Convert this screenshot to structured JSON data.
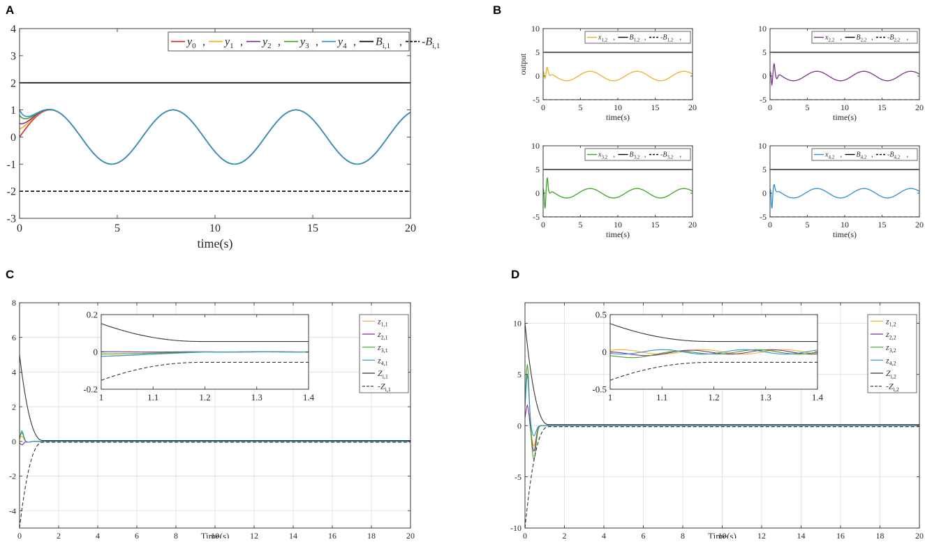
{
  "chart_data": [
    {
      "panel": "A",
      "type": "line",
      "xlabel": "time(s)",
      "ylabel": "",
      "xlim": [
        0,
        20
      ],
      "ylim": [
        -3,
        4
      ],
      "xticks": [
        "0",
        "5",
        "10",
        "15",
        "20"
      ],
      "yticks": [
        "-3",
        "-2",
        "-1",
        "0",
        "1",
        "2",
        "3",
        "4"
      ],
      "series": [
        {
          "name": "y0",
          "label_main": "y",
          "label_sub": "0",
          "color": "#d62728",
          "style": "solid",
          "func": "sin",
          "y0": 0,
          "decay": 2.5
        },
        {
          "name": "y1",
          "label_main": "y",
          "label_sub": "1",
          "color": "#edb120",
          "style": "solid",
          "func": "sin",
          "y0": 0.3,
          "decay": 2.5
        },
        {
          "name": "y2",
          "label_main": "y",
          "label_sub": "2",
          "color": "#7e2f8e",
          "style": "solid",
          "func": "sin",
          "y0": 0.5,
          "decay": 2.5
        },
        {
          "name": "y3",
          "label_main": "y",
          "label_sub": "3",
          "color": "#3ea322",
          "style": "solid",
          "func": "sin",
          "y0": 0.8,
          "decay": 2.5
        },
        {
          "name": "y4",
          "label_main": "y",
          "label_sub": "4",
          "color": "#2f8fd0",
          "style": "solid",
          "func": "sin",
          "y0": 1.0,
          "decay": 2.5
        },
        {
          "name": "Bi1",
          "label_main": "B",
          "label_sub": "i,1",
          "color": "#000000",
          "style": "solid",
          "func": "const",
          "value": 2
        },
        {
          "name": "-Bi1",
          "label_main": "-B",
          "label_sub": "i,1",
          "color": "#000000",
          "style": "dashed",
          "func": "const",
          "value": -2
        }
      ]
    },
    {
      "panel": "B",
      "subplot": 1,
      "type": "line",
      "xlabel": "time(s)",
      "ylabel": "output",
      "xlim": [
        0,
        20
      ],
      "ylim": [
        -5,
        10
      ],
      "xticks": [
        "0",
        "5",
        "10",
        "15",
        "20"
      ],
      "yticks": [
        "-5",
        "0",
        "5",
        "10"
      ],
      "series": [
        {
          "name": "x12",
          "label_main": "x",
          "label_sub": "1,2",
          "color": "#edb120",
          "style": "solid",
          "func": "cos",
          "spike": [
            -1.5,
            1.0,
            -0.5
          ]
        },
        {
          "name": "B12",
          "label_main": "B",
          "label_sub": "1,2",
          "color": "#000000",
          "style": "solid",
          "func": "const",
          "value": 5
        },
        {
          "name": "-B12",
          "label_main": "-B",
          "label_sub": "1,2",
          "color": "#000000",
          "style": "dashed",
          "func": "const",
          "value": -5
        }
      ]
    },
    {
      "panel": "B",
      "subplot": 2,
      "type": "line",
      "xlabel": "time(s)",
      "ylabel": "",
      "xlim": [
        0,
        20
      ],
      "ylim": [
        -5,
        10
      ],
      "xticks": [
        "0",
        "5",
        "10",
        "15",
        "20"
      ],
      "yticks": [
        "-5",
        "0",
        "5",
        "10"
      ],
      "series": [
        {
          "name": "x22",
          "label_main": "x",
          "label_sub": "2,2",
          "color": "#7e2f8e",
          "style": "solid",
          "func": "cos",
          "spike": [
            -2.8,
            1.8,
            -1.2
          ]
        },
        {
          "name": "B22",
          "label_main": "B",
          "label_sub": "2,2",
          "color": "#000000",
          "style": "solid",
          "func": "const",
          "value": 5
        },
        {
          "name": "-B22",
          "label_main": "-B",
          "label_sub": "2,2",
          "color": "#000000",
          "style": "dashed",
          "func": "const",
          "value": -5
        }
      ]
    },
    {
      "panel": "B",
      "subplot": 3,
      "type": "line",
      "xlabel": "time(s)",
      "ylabel": "",
      "xlim": [
        0,
        20
      ],
      "ylim": [
        -5,
        10
      ],
      "xticks": [
        "0",
        "5",
        "10",
        "15",
        "20"
      ],
      "yticks": [
        "-5",
        "0",
        "5",
        "10"
      ],
      "series": [
        {
          "name": "x32",
          "label_main": "x",
          "label_sub": "3,2",
          "color": "#3ea322",
          "style": "solid",
          "func": "cos",
          "spike": [
            -4.2,
            2.4,
            -0.6
          ]
        },
        {
          "name": "B32",
          "label_main": "B",
          "label_sub": "3,2",
          "color": "#000000",
          "style": "solid",
          "func": "const",
          "value": 5
        },
        {
          "name": "-B32",
          "label_main": "-B",
          "label_sub": "3,2",
          "color": "#000000",
          "style": "dashed",
          "func": "const",
          "value": -5
        }
      ]
    },
    {
      "panel": "B",
      "subplot": 4,
      "type": "line",
      "xlabel": "time(s)",
      "ylabel": "",
      "xlim": [
        0,
        20
      ],
      "ylim": [
        -5,
        10
      ],
      "xticks": [
        "0",
        "5",
        "10",
        "15",
        "20"
      ],
      "yticks": [
        "-5",
        "0",
        "5",
        "10"
      ],
      "series": [
        {
          "name": "x42",
          "label_main": "x",
          "label_sub": "4,2",
          "color": "#2f8fd0",
          "style": "solid",
          "func": "cos",
          "spike": [
            -4.2,
            1.0,
            -0.3
          ]
        },
        {
          "name": "B42",
          "label_main": "B",
          "label_sub": "4,2",
          "color": "#000000",
          "style": "solid",
          "func": "const",
          "value": 5
        },
        {
          "name": "-B42",
          "label_main": "-B",
          "label_sub": "4,2",
          "color": "#000000",
          "style": "dashed",
          "func": "const",
          "value": -5
        }
      ]
    },
    {
      "panel": "C",
      "type": "line",
      "xlabel": "Time(s)",
      "ylabel": "",
      "xlim": [
        0,
        20
      ],
      "ylim": [
        -5,
        8
      ],
      "xticks": [
        "0",
        "2",
        "4",
        "6",
        "8",
        "10",
        "12",
        "14",
        "16",
        "18",
        "20"
      ],
      "yticks": [
        "-4",
        "-2",
        "0",
        "2",
        "4",
        "6",
        "8"
      ],
      "series": [
        {
          "name": "z11",
          "label_main": "z",
          "label_sub": "1,1",
          "color": "#edb120",
          "style": "solid",
          "func": "bump",
          "a": 0.3
        },
        {
          "name": "z21",
          "label_main": "z",
          "label_sub": "2,1",
          "color": "#7e2f8e",
          "style": "solid",
          "func": "bump",
          "a": -0.2
        },
        {
          "name": "z31",
          "label_main": "z",
          "label_sub": "3,1",
          "color": "#3ea322",
          "style": "solid",
          "func": "bump",
          "a": 0.5
        },
        {
          "name": "z41",
          "label_main": "z",
          "label_sub": "4,1",
          "color": "#2f8fd0",
          "style": "solid",
          "func": "bump",
          "a": 0.6
        },
        {
          "name": "Zi1",
          "label_main": "Z",
          "label_sub": "i,1",
          "color": "#333333",
          "style": "solid",
          "func": "funnel",
          "z0": 5,
          "zinf": 0.05
        },
        {
          "name": "-Zi1",
          "label_main": "-Z",
          "label_sub": "i,1",
          "color": "#333333",
          "style": "dashed",
          "func": "funnel",
          "z0": -5,
          "zinf": -0.05
        }
      ],
      "inset": {
        "xlim": [
          1,
          1.4
        ],
        "ylim": [
          -0.2,
          0.2
        ],
        "xticks": [
          "1",
          "1.1",
          "1.2",
          "1.3",
          "1.4"
        ],
        "yticks": [
          "-0.2",
          "0",
          "0.2"
        ]
      }
    },
    {
      "panel": "D",
      "type": "line",
      "xlabel": "Time(s)",
      "ylabel": "",
      "xlim": [
        0,
        20
      ],
      "ylim": [
        -10,
        12
      ],
      "xticks": [
        "0",
        "2",
        "4",
        "6",
        "8",
        "10",
        "12",
        "14",
        "16",
        "18",
        "20"
      ],
      "yticks": [
        "-10",
        "-5",
        "0",
        "5",
        "10"
      ],
      "series": [
        {
          "name": "z12",
          "label_main": "z",
          "label_sub": "1,2",
          "color": "#edb120",
          "style": "solid",
          "func": "bump",
          "a": 5,
          "b": -2
        },
        {
          "name": "z22",
          "label_main": "z",
          "label_sub": "2,2",
          "color": "#7e2f8e",
          "style": "solid",
          "func": "bump",
          "a": 2,
          "b": -2.5
        },
        {
          "name": "z32",
          "label_main": "z",
          "label_sub": "3,2",
          "color": "#3ea322",
          "style": "solid",
          "func": "bump",
          "a": 6,
          "b": -3.3
        },
        {
          "name": "z42",
          "label_main": "z",
          "label_sub": "4,2",
          "color": "#2f8fd0",
          "style": "solid",
          "func": "bump",
          "a": 5,
          "b": -1
        },
        {
          "name": "Zi2",
          "label_main": "Z",
          "label_sub": "i,2",
          "color": "#333333",
          "style": "solid",
          "func": "funnel",
          "z0": 10,
          "zinf": 0.1
        },
        {
          "name": "-Zi2",
          "label_main": "-Z",
          "label_sub": "i,2",
          "color": "#333333",
          "style": "dashed",
          "func": "funnel",
          "z0": -10,
          "zinf": -0.1
        }
      ],
      "inset": {
        "xlim": [
          1,
          1.4
        ],
        "ylim": [
          -0.5,
          0.5
        ],
        "xticks": [
          "1",
          "1.1",
          "1.2",
          "1.3",
          "1.4"
        ],
        "yticks": [
          "-0.5",
          "0",
          "0.5"
        ]
      }
    }
  ],
  "panel_labels": [
    "A",
    "B",
    "C",
    "D"
  ]
}
